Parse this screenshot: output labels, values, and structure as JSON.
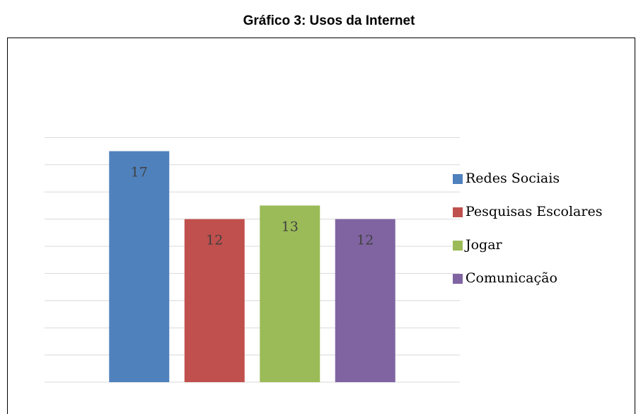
{
  "chart_data": {
    "type": "bar",
    "title": "Gráfico 3: Usos da Internet",
    "series": [
      {
        "name": "Redes Sociais",
        "color": "#4f81bd",
        "values": [
          17
        ]
      },
      {
        "name": "Pesquisas Escolares",
        "color": "#c0504d",
        "values": [
          12
        ]
      },
      {
        "name": "Jogar",
        "color": "#9bbb59",
        "values": [
          13
        ]
      },
      {
        "name": "Comunicação",
        "color": "#8064a2",
        "values": [
          12
        ]
      }
    ],
    "ylim": [
      0,
      18
    ],
    "yticks": [
      0,
      2,
      4,
      6,
      8,
      10,
      12,
      14,
      16,
      18
    ],
    "grid": true,
    "legend": "right"
  }
}
